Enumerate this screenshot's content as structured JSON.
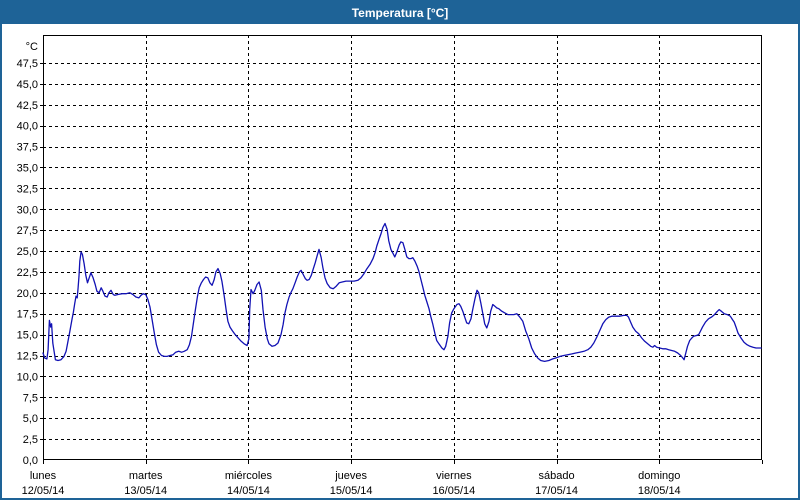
{
  "title": "Temperatura [°C]",
  "colors": {
    "accent_blue": "#1E6397",
    "title_text": "#FFFFFF",
    "line_color": "#1212B4",
    "grid_color": "#000000",
    "background": "#FFFFFF"
  },
  "y_axis": {
    "unit": "°C",
    "tick_labels_bottom_to_top": [
      "0,0",
      "2,5",
      "5,0",
      "7,5",
      "10,0",
      "12,5",
      "15,0",
      "17,5",
      "20,0",
      "22,5",
      "25,0",
      "27,5",
      "30,0",
      "32,5",
      "35,0",
      "37,5",
      "40,0",
      "42,5",
      "45,0",
      "47,5"
    ]
  },
  "x_axis": {
    "days": [
      {
        "name": "lunes",
        "date": "12/05/14"
      },
      {
        "name": "martes",
        "date": "13/05/14"
      },
      {
        "name": "miércoles",
        "date": "14/05/14"
      },
      {
        "name": "jueves",
        "date": "15/05/14"
      },
      {
        "name": "viernes",
        "date": "16/05/14"
      },
      {
        "name": "sábado",
        "date": "17/05/14"
      },
      {
        "name": "domingo",
        "date": "18/05/14"
      }
    ]
  },
  "chart_data": {
    "type": "line",
    "title": "Temperatura [°C]",
    "ylabel": "°C",
    "ylim": [
      0,
      50.8
    ],
    "ytick_step": 2.5,
    "ytick_max": 47.5,
    "x_range_hours": [
      0,
      168
    ],
    "x_note": "hours since lunes 12/05/14 00:00, one week, day gridlines every 24 h",
    "grid": "dashed",
    "legend": "none",
    "series": [
      {
        "name": "Temperatura",
        "color": "#1212B4",
        "points": [
          [
            0,
            12.8
          ],
          [
            0.4,
            12.2
          ],
          [
            0.9,
            12.1
          ],
          [
            1.2,
            13.2
          ],
          [
            1.5,
            16.7
          ],
          [
            1.8,
            15.9
          ],
          [
            2.0,
            16.3
          ],
          [
            2.3,
            14.0
          ],
          [
            2.5,
            13.3
          ],
          [
            2.9,
            12.0
          ],
          [
            3.5,
            11.9
          ],
          [
            4.2,
            12.0
          ],
          [
            4.9,
            12.4
          ],
          [
            5.4,
            13.0
          ],
          [
            5.8,
            14.1
          ],
          [
            6.3,
            15.5
          ],
          [
            6.8,
            16.9
          ],
          [
            7.1,
            17.7
          ],
          [
            7.4,
            18.7
          ],
          [
            7.7,
            19.6
          ],
          [
            8.0,
            19.4
          ],
          [
            8.2,
            20.6
          ],
          [
            8.4,
            22.0
          ],
          [
            8.6,
            23.8
          ],
          [
            8.9,
            24.9
          ],
          [
            9.2,
            24.6
          ],
          [
            9.6,
            23.5
          ],
          [
            10.0,
            22.1
          ],
          [
            10.4,
            21.2
          ],
          [
            10.8,
            21.8
          ],
          [
            11.2,
            22.4
          ],
          [
            11.7,
            21.8
          ],
          [
            12.2,
            21.0
          ],
          [
            12.6,
            20.2
          ],
          [
            13.1,
            20.0
          ],
          [
            13.6,
            20.6
          ],
          [
            14.0,
            20.2
          ],
          [
            14.5,
            19.6
          ],
          [
            15.0,
            19.5
          ],
          [
            15.4,
            20.0
          ],
          [
            15.9,
            20.3
          ],
          [
            16.4,
            19.8
          ],
          [
            16.8,
            19.7
          ],
          [
            17.5,
            19.8
          ],
          [
            18.5,
            19.9
          ],
          [
            19.4,
            19.9
          ],
          [
            20.3,
            20.0
          ],
          [
            21.0,
            19.8
          ],
          [
            21.7,
            19.5
          ],
          [
            22.4,
            19.4
          ],
          [
            22.9,
            19.7
          ],
          [
            23.4,
            19.9
          ],
          [
            24.0,
            19.8
          ],
          [
            24.5,
            19.2
          ],
          [
            25.0,
            18.3
          ],
          [
            25.5,
            16.8
          ],
          [
            26.0,
            15.2
          ],
          [
            26.5,
            13.8
          ],
          [
            27.0,
            12.9
          ],
          [
            27.7,
            12.5
          ],
          [
            28.4,
            12.4
          ],
          [
            29.0,
            12.4
          ],
          [
            29.7,
            12.5
          ],
          [
            30.4,
            12.6
          ],
          [
            31.0,
            12.9
          ],
          [
            31.7,
            13.0
          ],
          [
            32.4,
            12.9
          ],
          [
            33.0,
            13.0
          ],
          [
            33.7,
            13.2
          ],
          [
            34.2,
            13.8
          ],
          [
            34.7,
            14.8
          ],
          [
            35.1,
            16.2
          ],
          [
            35.6,
            18.0
          ],
          [
            36.1,
            19.6
          ],
          [
            36.5,
            20.6
          ],
          [
            37.0,
            21.2
          ],
          [
            37.5,
            21.6
          ],
          [
            38.0,
            21.9
          ],
          [
            38.5,
            21.8
          ],
          [
            39.0,
            21.2
          ],
          [
            39.5,
            20.9
          ],
          [
            40.0,
            21.6
          ],
          [
            40.4,
            22.5
          ],
          [
            40.9,
            22.9
          ],
          [
            41.4,
            22.3
          ],
          [
            41.8,
            21.4
          ],
          [
            42.3,
            19.8
          ],
          [
            42.8,
            17.9
          ],
          [
            43.2,
            16.6
          ],
          [
            43.7,
            15.9
          ],
          [
            44.2,
            15.5
          ],
          [
            44.9,
            15.0
          ],
          [
            45.6,
            14.6
          ],
          [
            46.3,
            14.2
          ],
          [
            47.0,
            13.9
          ],
          [
            47.7,
            13.7
          ],
          [
            48.1,
            14.5
          ],
          [
            48.3,
            18.0
          ],
          [
            48.6,
            20.4
          ],
          [
            49.1,
            19.9
          ],
          [
            49.5,
            20.3
          ],
          [
            50.0,
            21.0
          ],
          [
            50.5,
            21.3
          ],
          [
            51.0,
            20.3
          ],
          [
            51.4,
            18.0
          ],
          [
            51.9,
            15.9
          ],
          [
            52.4,
            14.5
          ],
          [
            52.8,
            13.9
          ],
          [
            53.5,
            13.6
          ],
          [
            54.2,
            13.7
          ],
          [
            54.9,
            14.0
          ],
          [
            55.6,
            15.0
          ],
          [
            56.1,
            16.2
          ],
          [
            56.5,
            17.5
          ],
          [
            57.0,
            18.6
          ],
          [
            57.5,
            19.5
          ],
          [
            58.0,
            20.1
          ],
          [
            58.4,
            20.5
          ],
          [
            58.9,
            21.2
          ],
          [
            59.4,
            21.9
          ],
          [
            59.9,
            22.5
          ],
          [
            60.3,
            22.7
          ],
          [
            60.8,
            22.2
          ],
          [
            61.3,
            21.7
          ],
          [
            61.7,
            21.5
          ],
          [
            62.2,
            21.6
          ],
          [
            62.7,
            22.1
          ],
          [
            63.1,
            22.8
          ],
          [
            63.6,
            23.6
          ],
          [
            64.1,
            24.5
          ],
          [
            64.5,
            25.2
          ],
          [
            65.0,
            24.2
          ],
          [
            65.4,
            23.0
          ],
          [
            65.9,
            21.8
          ],
          [
            66.4,
            21.1
          ],
          [
            67.1,
            20.6
          ],
          [
            67.8,
            20.5
          ],
          [
            68.5,
            20.8
          ],
          [
            69.2,
            21.2
          ],
          [
            69.9,
            21.3
          ],
          [
            70.8,
            21.4
          ],
          [
            71.7,
            21.4
          ],
          [
            72.7,
            21.4
          ],
          [
            73.6,
            21.5
          ],
          [
            74.3,
            21.8
          ],
          [
            75.0,
            22.3
          ],
          [
            75.7,
            22.9
          ],
          [
            76.4,
            23.4
          ],
          [
            77.1,
            24.1
          ],
          [
            77.6,
            24.8
          ],
          [
            78.0,
            25.6
          ],
          [
            78.5,
            26.4
          ],
          [
            79.0,
            27.1
          ],
          [
            79.4,
            27.8
          ],
          [
            79.9,
            28.3
          ],
          [
            80.4,
            27.6
          ],
          [
            80.8,
            26.2
          ],
          [
            81.3,
            25.2
          ],
          [
            81.8,
            24.7
          ],
          [
            82.2,
            24.3
          ],
          [
            82.7,
            24.9
          ],
          [
            83.2,
            25.7
          ],
          [
            83.6,
            26.1
          ],
          [
            84.1,
            26.0
          ],
          [
            84.6,
            25.1
          ],
          [
            85.0,
            24.3
          ],
          [
            85.5,
            24.1
          ],
          [
            86.0,
            24.1
          ],
          [
            86.4,
            24.2
          ],
          [
            86.9,
            23.8
          ],
          [
            87.4,
            23.2
          ],
          [
            87.8,
            22.6
          ],
          [
            88.3,
            21.6
          ],
          [
            88.8,
            20.6
          ],
          [
            89.2,
            19.7
          ],
          [
            89.7,
            18.9
          ],
          [
            90.2,
            18.1
          ],
          [
            90.6,
            17.2
          ],
          [
            91.1,
            16.2
          ],
          [
            91.6,
            15.1
          ],
          [
            92.0,
            14.3
          ],
          [
            92.5,
            13.9
          ],
          [
            93.2,
            13.4
          ],
          [
            93.7,
            13.2
          ],
          [
            94.1,
            13.6
          ],
          [
            94.6,
            14.8
          ],
          [
            95.0,
            16.4
          ],
          [
            95.5,
            17.6
          ],
          [
            96.0,
            18.1
          ],
          [
            96.7,
            18.6
          ],
          [
            97.2,
            18.7
          ],
          [
            97.6,
            18.4
          ],
          [
            98.1,
            17.8
          ],
          [
            98.6,
            17.0
          ],
          [
            99.0,
            16.4
          ],
          [
            99.5,
            16.3
          ],
          [
            100.0,
            16.9
          ],
          [
            100.4,
            18.0
          ],
          [
            100.9,
            19.2
          ],
          [
            101.4,
            20.3
          ],
          [
            101.8,
            20.0
          ],
          [
            102.3,
            18.8
          ],
          [
            102.8,
            17.4
          ],
          [
            103.2,
            16.3
          ],
          [
            103.7,
            15.8
          ],
          [
            104.2,
            16.6
          ],
          [
            104.6,
            17.8
          ],
          [
            105.1,
            18.6
          ],
          [
            105.6,
            18.4
          ],
          [
            106.0,
            18.2
          ],
          [
            106.5,
            18.1
          ],
          [
            107.2,
            17.8
          ],
          [
            107.9,
            17.6
          ],
          [
            108.6,
            17.4
          ],
          [
            109.3,
            17.4
          ],
          [
            110.0,
            17.4
          ],
          [
            110.7,
            17.5
          ],
          [
            111.4,
            17.1
          ],
          [
            112.1,
            16.6
          ],
          [
            112.8,
            15.4
          ],
          [
            113.5,
            14.5
          ],
          [
            114.2,
            13.4
          ],
          [
            114.9,
            12.7
          ],
          [
            115.6,
            12.2
          ],
          [
            116.3,
            11.9
          ],
          [
            117.2,
            11.8
          ],
          [
            118.2,
            11.9
          ],
          [
            119.1,
            12.1
          ],
          [
            119.8,
            12.2
          ],
          [
            120.8,
            12.4
          ],
          [
            121.7,
            12.5
          ],
          [
            122.6,
            12.6
          ],
          [
            123.6,
            12.7
          ],
          [
            124.5,
            12.8
          ],
          [
            125.4,
            12.9
          ],
          [
            126.4,
            13.0
          ],
          [
            127.3,
            13.2
          ],
          [
            128.0,
            13.5
          ],
          [
            128.7,
            14.0
          ],
          [
            129.4,
            14.7
          ],
          [
            130.1,
            15.5
          ],
          [
            130.8,
            16.3
          ],
          [
            131.5,
            16.8
          ],
          [
            132.2,
            17.1
          ],
          [
            132.9,
            17.2
          ],
          [
            133.8,
            17.2
          ],
          [
            134.7,
            17.2
          ],
          [
            135.7,
            17.3
          ],
          [
            136.4,
            17.3
          ],
          [
            136.8,
            17.1
          ],
          [
            137.3,
            16.5
          ],
          [
            137.8,
            15.9
          ],
          [
            138.5,
            15.4
          ],
          [
            139.2,
            15.1
          ],
          [
            139.9,
            14.6
          ],
          [
            140.6,
            14.2
          ],
          [
            141.3,
            13.9
          ],
          [
            142.0,
            13.6
          ],
          [
            142.5,
            13.5
          ],
          [
            142.9,
            13.7
          ],
          [
            143.4,
            13.5
          ],
          [
            144.1,
            13.4
          ],
          [
            144.8,
            13.3
          ],
          [
            145.5,
            13.3
          ],
          [
            146.2,
            13.2
          ],
          [
            146.9,
            13.1
          ],
          [
            147.6,
            13.0
          ],
          [
            148.3,
            12.8
          ],
          [
            149.0,
            12.5
          ],
          [
            149.5,
            12.2
          ],
          [
            149.8,
            12.0
          ],
          [
            150.2,
            12.8
          ],
          [
            150.6,
            13.6
          ],
          [
            151.1,
            14.3
          ],
          [
            151.6,
            14.6
          ],
          [
            152.0,
            14.8
          ],
          [
            152.7,
            14.9
          ],
          [
            153.2,
            15.0
          ],
          [
            153.7,
            15.5
          ],
          [
            154.1,
            15.9
          ],
          [
            154.8,
            16.5
          ],
          [
            155.5,
            16.9
          ],
          [
            156.2,
            17.1
          ],
          [
            156.9,
            17.4
          ],
          [
            157.6,
            17.8
          ],
          [
            158.0,
            18.0
          ],
          [
            158.5,
            17.8
          ],
          [
            159.2,
            17.5
          ],
          [
            159.9,
            17.4
          ],
          [
            160.6,
            17.2
          ],
          [
            161.1,
            16.8
          ],
          [
            161.5,
            16.5
          ],
          [
            162.0,
            15.8
          ],
          [
            162.4,
            15.2
          ],
          [
            163.1,
            14.6
          ],
          [
            163.8,
            14.1
          ],
          [
            164.5,
            13.8
          ],
          [
            165.2,
            13.6
          ],
          [
            165.9,
            13.5
          ],
          [
            166.6,
            13.4
          ],
          [
            167.3,
            13.4
          ],
          [
            167.8,
            13.4
          ]
        ]
      }
    ]
  }
}
